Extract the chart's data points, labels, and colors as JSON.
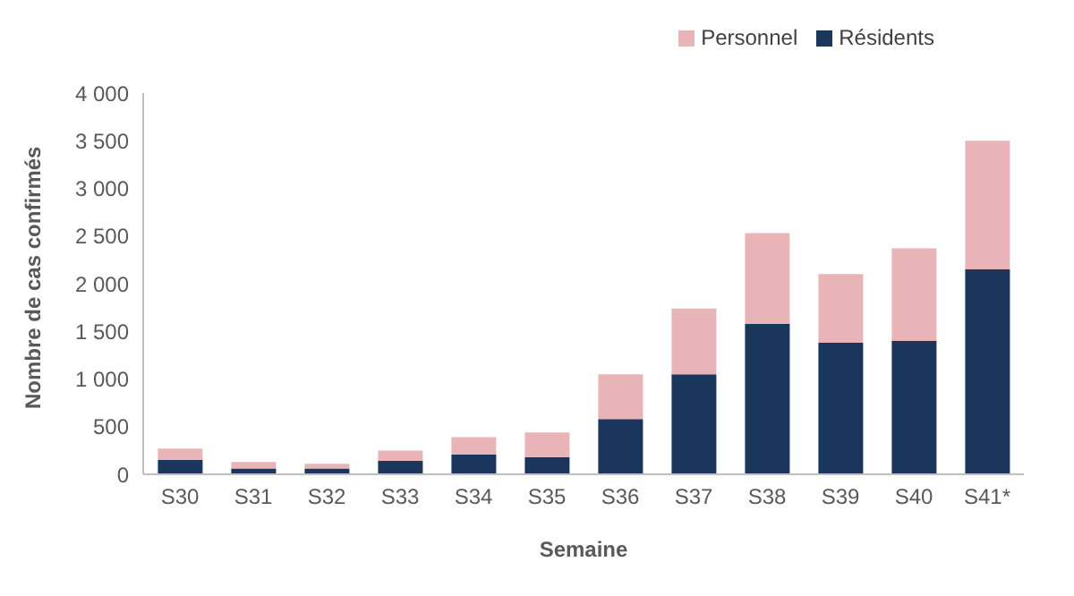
{
  "chart_data": {
    "type": "bar",
    "stacked": true,
    "xlabel": "Semaine",
    "ylabel": "Nombre de cas confirmés",
    "categories": [
      "S30",
      "S31",
      "S32",
      "S33",
      "S34",
      "S35",
      "S36",
      "S37",
      "S38",
      "S39",
      "S40",
      "S41*"
    ],
    "series": [
      {
        "name": "Résidents",
        "color": "#1b365d",
        "values": [
          150,
          60,
          60,
          140,
          210,
          180,
          580,
          1050,
          1580,
          1380,
          1400,
          2150
        ]
      },
      {
        "name": "Personnel",
        "color": "#e8b4b8",
        "values": [
          120,
          70,
          50,
          110,
          180,
          260,
          470,
          690,
          950,
          720,
          970,
          1350
        ]
      }
    ],
    "ylim": [
      0,
      4000
    ],
    "yticks": [
      0,
      {
        "value": 500,
        "label": "500"
      },
      {
        "value": 1000,
        "label": "1 000"
      },
      {
        "value": 1500,
        "label": "1 500"
      },
      {
        "value": 2000,
        "label": "2 000"
      },
      {
        "value": 2500,
        "label": "2 500"
      },
      {
        "value": 3000,
        "label": "3 000"
      },
      {
        "value": 3500,
        "label": "3 500"
      },
      {
        "value": 4000,
        "label": "4 000"
      }
    ],
    "grid": false,
    "legend": "top right"
  }
}
